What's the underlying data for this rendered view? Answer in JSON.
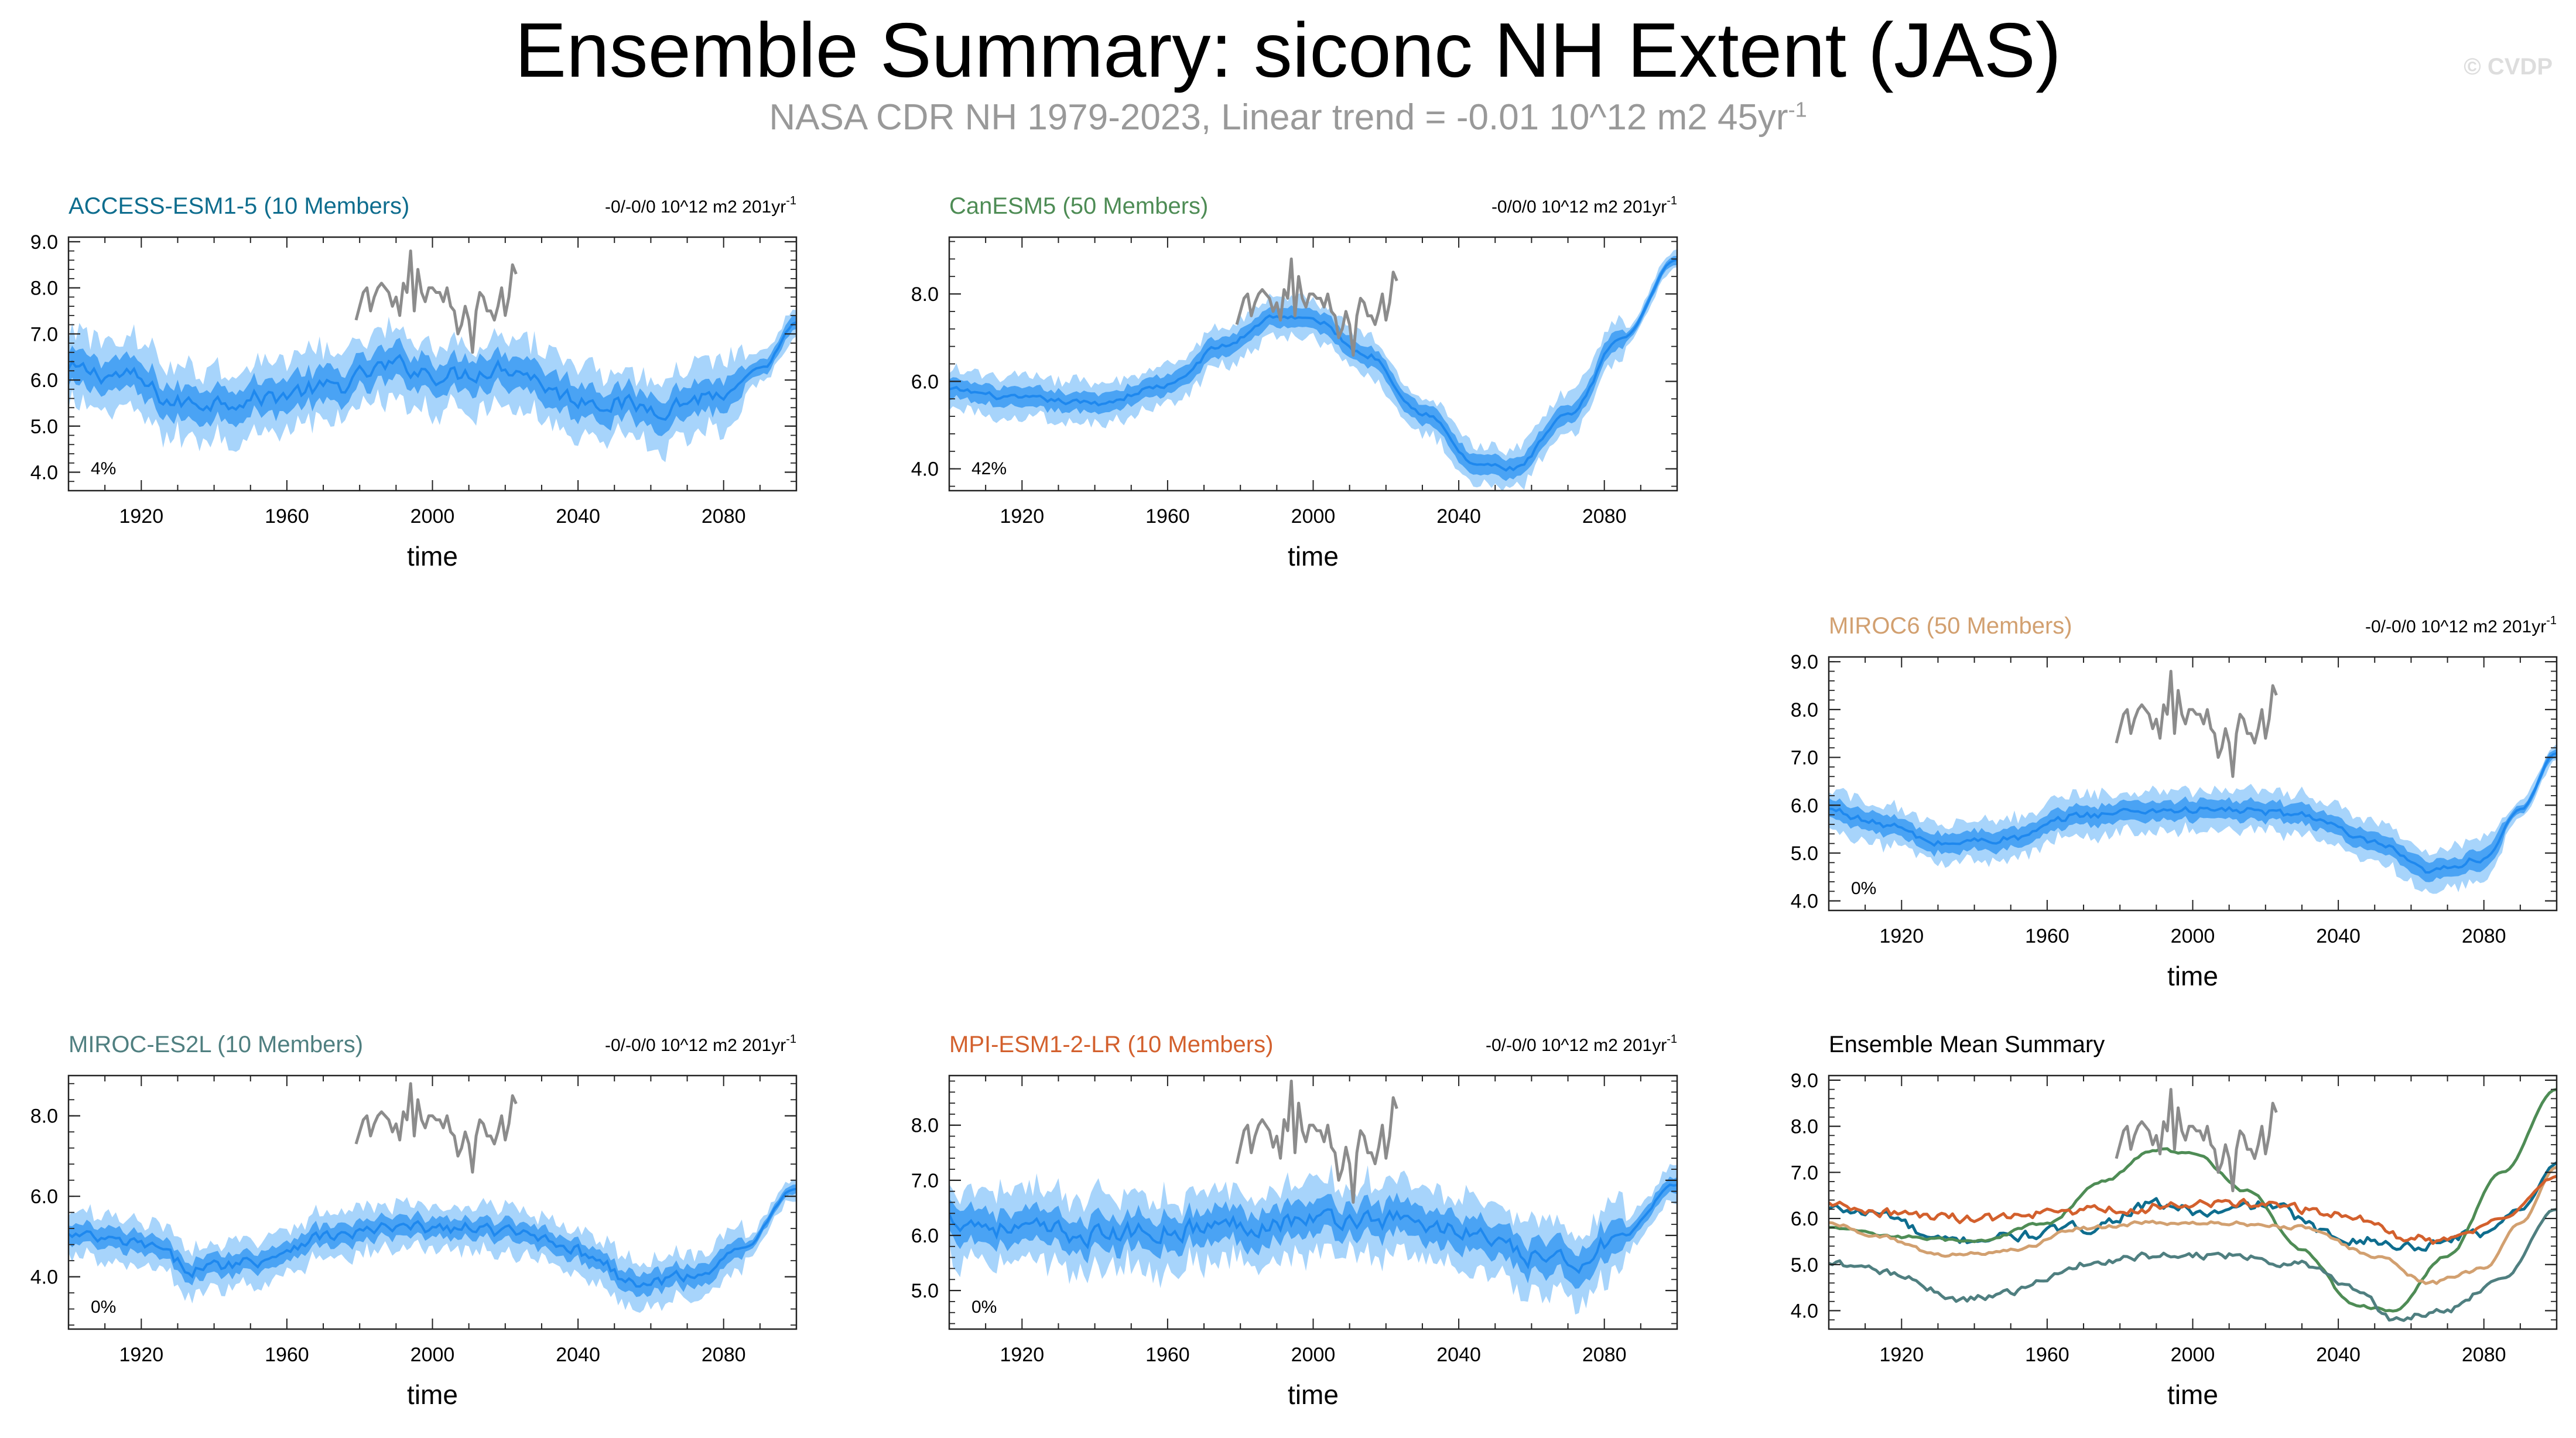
{
  "title": "Ensemble Summary: siconc NH Extent (JAS)",
  "subtitle": "NASA CDR NH 1979-2023, Linear trend = -0.01 10^12 m2 45yr",
  "subtitle_sup": "-1",
  "credit": "© CVDP",
  "colors": {
    "band_outer": "#a7d4fb",
    "band_inner": "#4aa3f4",
    "mean_line": "#1e88ee",
    "obs_line": "#8c8c8c",
    "axis": "#222222",
    "panel_title_default": "#000000"
  },
  "chart_data": [
    {
      "type": "line",
      "id": "access",
      "title": "ACCESS-ESM1-5 (10 Members)",
      "title_color": "#0e6d8e",
      "trend_label": "-0/-0/0 10^12 m2 201yr",
      "trend_sup": "-1",
      "pct_label": "4%",
      "xlabel": "time",
      "xlim": [
        1900,
        2100
      ],
      "xticks": [
        1920,
        1960,
        2000,
        2040,
        2080
      ],
      "ylim": [
        3.6,
        9.1
      ],
      "yticks": [
        4.0,
        5.0,
        6.0,
        7.0,
        8.0,
        9.0
      ],
      "ytick_labels": [
        "4.0",
        "5.0",
        "6.0",
        "7.0",
        "8.0",
        "9.0"
      ],
      "mean_keys": [
        [
          1900,
          6.2
        ],
        [
          1915,
          6.1
        ],
        [
          1930,
          5.5
        ],
        [
          1950,
          5.6
        ],
        [
          1970,
          5.8
        ],
        [
          1990,
          6.3
        ],
        [
          2005,
          6.1
        ],
        [
          2020,
          6.3
        ],
        [
          2040,
          5.6
        ],
        [
          2060,
          5.4
        ],
        [
          2080,
          5.7
        ],
        [
          2090,
          6.2
        ],
        [
          2100,
          7.2
        ]
      ],
      "spread_inner": 0.35,
      "spread_outer": 0.75,
      "noise": 0.18
    },
    {
      "type": "line",
      "id": "canesm5",
      "title": "CanESM5 (50 Members)",
      "title_color": "#4e8c55",
      "trend_label": "-0/0/0 10^12 m2 201yr",
      "trend_sup": "-1",
      "pct_label": "42%",
      "xlabel": "time",
      "xlim": [
        1900,
        2100
      ],
      "xticks": [
        1920,
        1960,
        2000,
        2040,
        2080
      ],
      "ylim": [
        3.5,
        9.3
      ],
      "yticks": [
        4.0,
        6.0,
        8.0
      ],
      "ytick_labels": [
        "4.0",
        "6.0",
        "8.0"
      ],
      "mean_keys": [
        [
          1900,
          5.8
        ],
        [
          1920,
          5.6
        ],
        [
          1940,
          5.5
        ],
        [
          1960,
          5.9
        ],
        [
          1975,
          6.8
        ],
        [
          1990,
          7.5
        ],
        [
          2000,
          7.4
        ],
        [
          2015,
          6.6
        ],
        [
          2030,
          5.3
        ],
        [
          2045,
          4.1
        ],
        [
          2055,
          4.0
        ],
        [
          2070,
          5.2
        ],
        [
          2085,
          7.0
        ],
        [
          2100,
          8.8
        ]
      ],
      "spread_inner": 0.22,
      "spread_outer": 0.45,
      "noise": 0.06
    },
    {
      "type": "line",
      "id": "miroc6",
      "title": "MIROC6 (50 Members)",
      "title_color": "#d2a070",
      "trend_label": "-0/-0/0 10^12 m2 201yr",
      "trend_sup": "-1",
      "pct_label": "0%",
      "xlabel": "time",
      "xlim": [
        1900,
        2100
      ],
      "xticks": [
        1920,
        1960,
        2000,
        2040,
        2080
      ],
      "ylim": [
        3.8,
        9.1
      ],
      "yticks": [
        4.0,
        5.0,
        6.0,
        7.0,
        8.0,
        9.0
      ],
      "ytick_labels": [
        "4.0",
        "5.0",
        "6.0",
        "7.0",
        "8.0",
        "9.0"
      ],
      "mean_keys": [
        [
          1900,
          5.9
        ],
        [
          1915,
          5.6
        ],
        [
          1930,
          5.2
        ],
        [
          1950,
          5.3
        ],
        [
          1970,
          5.8
        ],
        [
          1990,
          5.9
        ],
        [
          2010,
          5.9
        ],
        [
          2030,
          5.8
        ],
        [
          2050,
          5.2
        ],
        [
          2065,
          4.6
        ],
        [
          2080,
          4.9
        ],
        [
          2090,
          5.9
        ],
        [
          2100,
          7.1
        ]
      ],
      "spread_inner": 0.2,
      "spread_outer": 0.42,
      "noise": 0.07
    },
    {
      "type": "line",
      "id": "mirocesl",
      "title": "MIROC-ES2L (10 Members)",
      "title_color": "#4f7f80",
      "trend_label": "-0/-0/0 10^12 m2 201yr",
      "trend_sup": "-1",
      "pct_label": "0%",
      "xlabel": "time",
      "xlim": [
        1900,
        2100
      ],
      "xticks": [
        1920,
        1960,
        2000,
        2040,
        2080
      ],
      "ylim": [
        2.7,
        9.0
      ],
      "yticks": [
        4.0,
        6.0,
        8.0
      ],
      "ytick_labels": [
        "4.0",
        "6.0",
        "8.0"
      ],
      "mean_keys": [
        [
          1900,
          5.0
        ],
        [
          1920,
          4.8
        ],
        [
          1935,
          4.2
        ],
        [
          1950,
          4.4
        ],
        [
          1970,
          5.0
        ],
        [
          1990,
          5.2
        ],
        [
          2010,
          5.2
        ],
        [
          2030,
          5.0
        ],
        [
          2045,
          4.5
        ],
        [
          2055,
          3.8
        ],
        [
          2070,
          4.0
        ],
        [
          2085,
          4.7
        ],
        [
          2100,
          6.2
        ]
      ],
      "spread_inner": 0.25,
      "spread_outer": 0.55,
      "noise": 0.14
    },
    {
      "type": "line",
      "id": "mpi",
      "title": "MPI-ESM1-2-LR (10 Members)",
      "title_color": "#d3602d",
      "trend_label": "-0/-0/0 10^12 m2 201yr",
      "trend_sup": "-1",
      "pct_label": "0%",
      "xlabel": "time",
      "xlim": [
        1900,
        2100
      ],
      "xticks": [
        1920,
        1960,
        2000,
        2040,
        2080
      ],
      "ylim": [
        4.3,
        8.9
      ],
      "yticks": [
        5.0,
        6.0,
        7.0,
        8.0
      ],
      "ytick_labels": [
        "5.0",
        "6.0",
        "7.0",
        "8.0"
      ],
      "mean_keys": [
        [
          1900,
          6.3
        ],
        [
          1920,
          6.1
        ],
        [
          1940,
          6.0
        ],
        [
          1960,
          6.1
        ],
        [
          1980,
          6.2
        ],
        [
          2000,
          6.3
        ],
        [
          2020,
          6.3
        ],
        [
          2040,
          6.1
        ],
        [
          2060,
          5.6
        ],
        [
          2070,
          5.5
        ],
        [
          2085,
          6.0
        ],
        [
          2100,
          6.9
        ]
      ],
      "spread_inner": 0.3,
      "spread_outer": 0.65,
      "noise": 0.16
    },
    {
      "type": "line",
      "id": "summary",
      "title": "Ensemble Mean Summary",
      "title_color": "#000000",
      "xlabel": "time",
      "xlim": [
        1900,
        2100
      ],
      "xticks": [
        1920,
        1960,
        2000,
        2040,
        2080
      ],
      "ylim": [
        3.6,
        9.1
      ],
      "yticks": [
        4.0,
        5.0,
        6.0,
        7.0,
        8.0,
        9.0
      ],
      "ytick_labels": [
        "4.0",
        "5.0",
        "6.0",
        "7.0",
        "8.0",
        "9.0"
      ],
      "series": [
        {
          "name": "ACCESS-ESM1-5",
          "color": "#0e6d8e",
          "ref": "access",
          "noise": 0.1
        },
        {
          "name": "CanESM5",
          "color": "#4e8c55",
          "ref": "canesm5",
          "noise": 0.03
        },
        {
          "name": "MIROC6",
          "color": "#d2a070",
          "ref": "miroc6",
          "noise": 0.04
        },
        {
          "name": "MIROC-ES2L",
          "color": "#4f7f80",
          "ref": "mirocesl",
          "noise": 0.07
        },
        {
          "name": "MPI-ESM1-2-LR",
          "color": "#d3602d",
          "ref": "mpi",
          "noise": 0.09
        }
      ]
    }
  ],
  "observations": {
    "name": "NASA CDR NH",
    "years": [
      1979,
      1980,
      1981,
      1982,
      1983,
      1984,
      1985,
      1986,
      1987,
      1988,
      1989,
      1990,
      1991,
      1992,
      1993,
      1994,
      1995,
      1996,
      1997,
      1998,
      1999,
      2000,
      2001,
      2002,
      2003,
      2004,
      2005,
      2006,
      2007,
      2008,
      2009,
      2010,
      2011,
      2012,
      2013,
      2014,
      2015,
      2016,
      2017,
      2018,
      2019,
      2020,
      2021,
      2022,
      2023
    ],
    "values": [
      7.3,
      7.6,
      7.9,
      8.0,
      7.5,
      7.8,
      8.0,
      8.1,
      8.0,
      7.9,
      7.6,
      7.8,
      7.4,
      8.1,
      7.9,
      8.8,
      7.5,
      8.4,
      7.9,
      7.7,
      8.0,
      8.0,
      7.9,
      7.9,
      7.7,
      8.0,
      7.6,
      7.5,
      7.0,
      7.2,
      7.6,
      7.3,
      6.6,
      7.5,
      7.9,
      7.8,
      7.5,
      7.5,
      7.3,
      7.6,
      8.0,
      7.4,
      7.8,
      8.5,
      8.3
    ]
  }
}
